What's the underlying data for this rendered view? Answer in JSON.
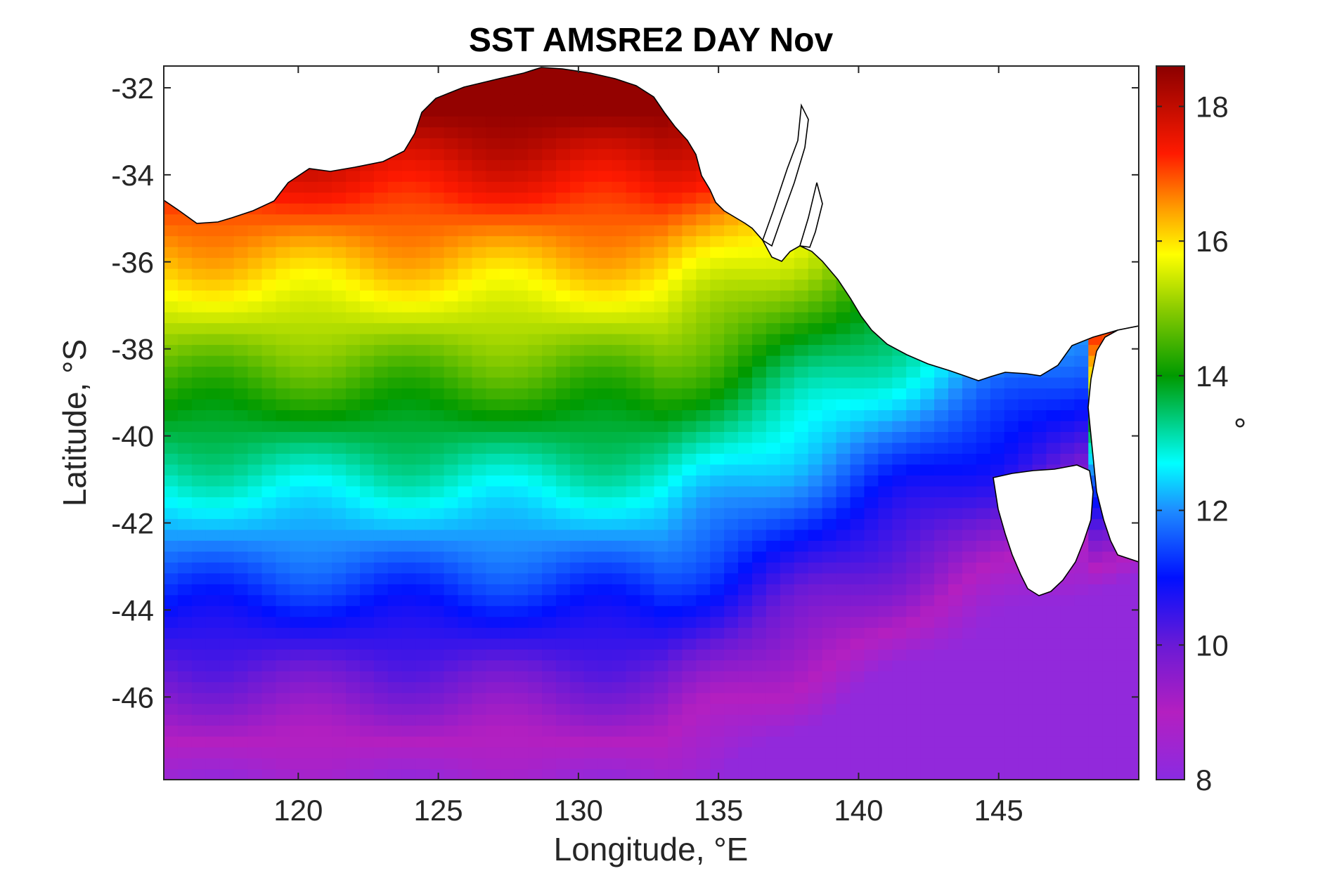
{
  "chart_data": {
    "type": "heatmap",
    "title": "SST AMSRE2 DAY Nov",
    "xlabel": "Longitude, °E",
    "ylabel": "Latitude, °S",
    "colorbar_label": "°",
    "xlim": [
      115.2,
      150
    ],
    "ylim": [
      -47.9,
      -31.5
    ],
    "xticks": [
      120,
      125,
      130,
      135,
      140,
      145
    ],
    "yticks": [
      -32,
      -34,
      -36,
      -38,
      -40,
      -42,
      -44,
      -46
    ],
    "xtick_labels": [
      "120",
      "125",
      "130",
      "135",
      "140",
      "145"
    ],
    "ytick_labels": [
      "-32",
      "-34",
      "-36",
      "-38",
      "-40",
      "-42",
      "-44",
      "-46"
    ],
    "clim": [
      8,
      18.6
    ],
    "cticks": [
      8,
      10,
      12,
      14,
      16,
      18
    ],
    "ctick_labels": [
      "8",
      "10",
      "12",
      "14",
      "16",
      "18"
    ],
    "colormap": "jet-like: purple-blue-cyan-green-yellow-red-darkred",
    "colormap_stops": [
      {
        "v": 8.0,
        "c": "#8a2be2"
      },
      {
        "v": 9.0,
        "c": "#b41fc0"
      },
      {
        "v": 10.0,
        "c": "#6a1ad6"
      },
      {
        "v": 11.0,
        "c": "#0010ff"
      },
      {
        "v": 12.0,
        "c": "#1e8cff"
      },
      {
        "v": 12.7,
        "c": "#00ffff"
      },
      {
        "v": 13.5,
        "c": "#00c060"
      },
      {
        "v": 14.0,
        "c": "#009a00"
      },
      {
        "v": 15.0,
        "c": "#8ccc00"
      },
      {
        "v": 15.8,
        "c": "#ffff00"
      },
      {
        "v": 16.5,
        "c": "#ff9a00"
      },
      {
        "v": 17.3,
        "c": "#ff1a00"
      },
      {
        "v": 18.6,
        "c": "#8b0000"
      }
    ],
    "land_color": "#ffffff",
    "coastline_color": "#000000",
    "grid": false,
    "field_description_values": {
      "north_west_max_near_lat_-32": 18.5,
      "lat_-36_band": 16.8,
      "lat_-38_band": 15.5,
      "lat_-40_band": 14.0,
      "lat_-41.5_band": 12.5,
      "lat_-43.5_band": 11.0,
      "lat_-46_band": 9.5,
      "south_min_lat_-47.5": 8.5,
      "east_australian_current_max": 17.5
    }
  }
}
